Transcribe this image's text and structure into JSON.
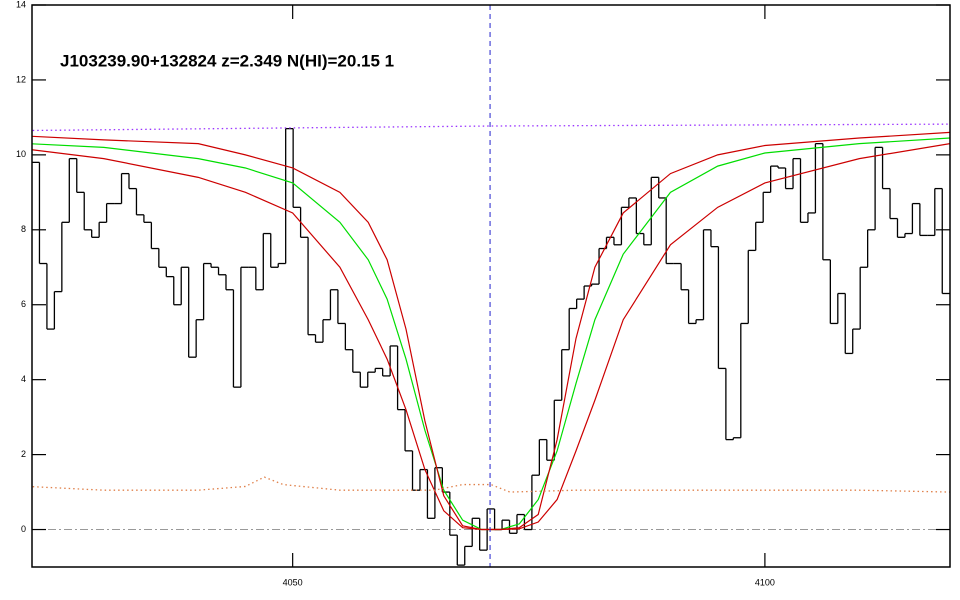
{
  "chart_data": {
    "type": "line",
    "title": "J103239.90+132824 z=2.349 N(HI)=20.15 1",
    "xlim": [
      4022.4,
      4119.6
    ],
    "ylim": [
      -1,
      14
    ],
    "xticks": [
      4050,
      4100
    ],
    "yticks": [
      0,
      2,
      4,
      6,
      8,
      10,
      12,
      14
    ],
    "zero_line": 0,
    "line_center": 4070.9,
    "series": [
      {
        "style": "step",
        "color": "#000000",
        "x": [
          4022.4,
          4023.19,
          4023.98,
          4024.77,
          4025.56,
          4026.35,
          4027.14,
          4027.93,
          4028.72,
          4029.51,
          4030.3,
          4031.09,
          4031.88,
          4032.67,
          4033.46,
          4034.25,
          4035.04,
          4035.83,
          4036.62,
          4037.41,
          4038.2,
          4038.99,
          4039.78,
          4040.57,
          4041.36,
          4042.15,
          4042.94,
          4043.73,
          4044.52,
          4045.31,
          4046.1,
          4046.89,
          4047.68,
          4048.47,
          4049.26,
          4050.05,
          4050.84,
          4051.63,
          4052.42,
          4053.21,
          4054.0,
          4054.79,
          4055.58,
          4056.37,
          4057.16,
          4057.95,
          4058.74,
          4059.53,
          4060.32,
          4061.11,
          4061.9,
          4062.69,
          4063.48,
          4064.27,
          4065.06,
          4065.85,
          4066.64,
          4067.43,
          4068.22,
          4069.01,
          4069.8,
          4070.59,
          4071.38,
          4072.17,
          4072.96,
          4073.75,
          4074.54,
          4075.33,
          4076.12,
          4076.91,
          4077.7,
          4078.49,
          4079.28,
          4080.07,
          4080.86,
          4081.65,
          4082.44,
          4083.23,
          4084.02,
          4084.81,
          4085.6,
          4086.39,
          4087.18,
          4087.97,
          4088.76,
          4089.55,
          4090.34,
          4091.13,
          4091.92,
          4092.71,
          4093.5,
          4094.29,
          4095.08,
          4095.87,
          4096.66,
          4097.45,
          4098.24,
          4099.03,
          4099.82,
          4100.61,
          4101.4,
          4102.19,
          4102.98,
          4103.77,
          4104.56,
          4105.35,
          4106.14,
          4106.93,
          4107.72,
          4108.51,
          4109.3,
          4110.09,
          4110.88,
          4111.67,
          4112.46,
          4113.25,
          4114.04,
          4114.83,
          4115.62,
          4116.41,
          4117.2,
          4117.99,
          4118.78
        ],
        "values": [
          9.8,
          7.1,
          5.35,
          6.35,
          8.2,
          9.9,
          9.0,
          8.0,
          7.8,
          8.2,
          8.7,
          8.7,
          9.5,
          9.1,
          8.4,
          8.2,
          7.5,
          7.0,
          6.75,
          6.0,
          7.0,
          4.6,
          5.6,
          7.1,
          7.0,
          6.8,
          6.4,
          3.8,
          7.0,
          7.0,
          6.4,
          7.9,
          7.0,
          7.1,
          10.7,
          8.6,
          7.8,
          5.2,
          5.0,
          5.6,
          6.4,
          5.5,
          4.8,
          4.2,
          3.8,
          4.2,
          4.3,
          4.1,
          4.9,
          3.2,
          2.1,
          1.05,
          1.6,
          0.3,
          1.65,
          1.0,
          -0.15,
          -0.95,
          -0.45,
          0.3,
          -0.55,
          0.55,
          0,
          0.25,
          -0.1,
          0.4,
          0,
          1.45,
          2.4,
          1.85,
          3.45,
          4.8,
          5.9,
          6.15,
          6.5,
          6.55,
          7.5,
          7.8,
          7.6,
          8.6,
          8.85,
          7.9,
          7.6,
          9.4,
          8.85,
          7.1,
          7.1,
          6.4,
          5.5,
          5.6,
          8.0,
          7.55,
          4.3,
          2.4,
          2.45,
          5.5,
          7.45,
          8.2,
          9.0,
          9.7,
          9.65,
          9.1,
          9.9,
          8.2,
          8.45,
          10.3,
          7.2,
          5.5,
          6.3,
          4.7,
          5.35,
          7.0,
          8.0,
          10.2,
          9.1,
          8.3,
          7.8,
          7.9,
          8.7,
          7.85,
          7.85,
          9.1,
          6.3
        ]
      },
      {
        "style": "solid",
        "color": "#00dd00",
        "x": [
          4022,
          4030,
          4040,
          4045,
          4050,
          4055,
          4058,
          4060,
          4062,
          4064,
          4066,
          4068,
          4070,
          4071,
          4072,
          4074,
          4076,
          4078,
          4080,
          4082,
          4085,
          4090,
          4095,
          4100,
          4110,
          4119.6
        ],
        "values": [
          10.3,
          10.2,
          9.9,
          9.65,
          9.25,
          8.2,
          7.2,
          6.15,
          4.55,
          2.65,
          1.05,
          0.25,
          0,
          0,
          0,
          0.15,
          0.8,
          2.1,
          3.9,
          5.6,
          7.35,
          9.0,
          9.7,
          10.05,
          10.3,
          10.45
        ]
      },
      {
        "style": "solid",
        "color": "#cc0000",
        "x": [
          4022,
          4030,
          4040,
          4045,
          4050,
          4055,
          4058,
          4060,
          4062,
          4064,
          4066,
          4068,
          4070,
          4071,
          4072,
          4074,
          4076,
          4078,
          4080,
          4082,
          4085,
          4090,
          4095,
          4100,
          4110,
          4119.6
        ],
        "values": [
          10.5,
          10.4,
          10.3,
          10.0,
          9.65,
          9.0,
          8.2,
          7.2,
          5.35,
          2.9,
          0.9,
          0.1,
          0,
          0,
          0,
          0.05,
          0.4,
          2.4,
          5.1,
          7.0,
          8.45,
          9.5,
          10.0,
          10.25,
          10.45,
          10.6
        ]
      },
      {
        "style": "solid",
        "color": "#cc0000",
        "x": [
          4022,
          4030,
          4040,
          4045,
          4050,
          4055,
          4058,
          4060,
          4062,
          4064,
          4066,
          4068,
          4070,
          4071,
          4072,
          4074,
          4076,
          4078,
          4080,
          4082,
          4085,
          4090,
          4095,
          4100,
          4110,
          4119.6
        ],
        "values": [
          10.15,
          9.9,
          9.4,
          9.0,
          8.45,
          7.0,
          5.6,
          4.55,
          3.2,
          1.6,
          0.5,
          0.05,
          0,
          0,
          0,
          0.02,
          0.2,
          0.8,
          2.1,
          3.45,
          5.6,
          7.6,
          8.6,
          9.25,
          9.9,
          10.3
        ]
      },
      {
        "style": "dotted",
        "color": "#9933ff",
        "x": [
          4022,
          4050,
          4070.9,
          4119.6
        ],
        "values": [
          10.65,
          10.72,
          10.77,
          10.82
        ]
      },
      {
        "style": "dotted",
        "color": "#e0804a",
        "x": [
          4022,
          4030,
          4040,
          4045,
          4047,
          4049,
          4055,
          4065,
          4068,
          4071,
          4073,
          4080,
          4090,
          4100,
          4110,
          4119.6
        ],
        "values": [
          1.15,
          1.05,
          1.05,
          1.15,
          1.4,
          1.2,
          1.05,
          1.05,
          1.2,
          1.2,
          1.0,
          1.05,
          1.05,
          1.05,
          1.05,
          1.0
        ]
      }
    ]
  }
}
